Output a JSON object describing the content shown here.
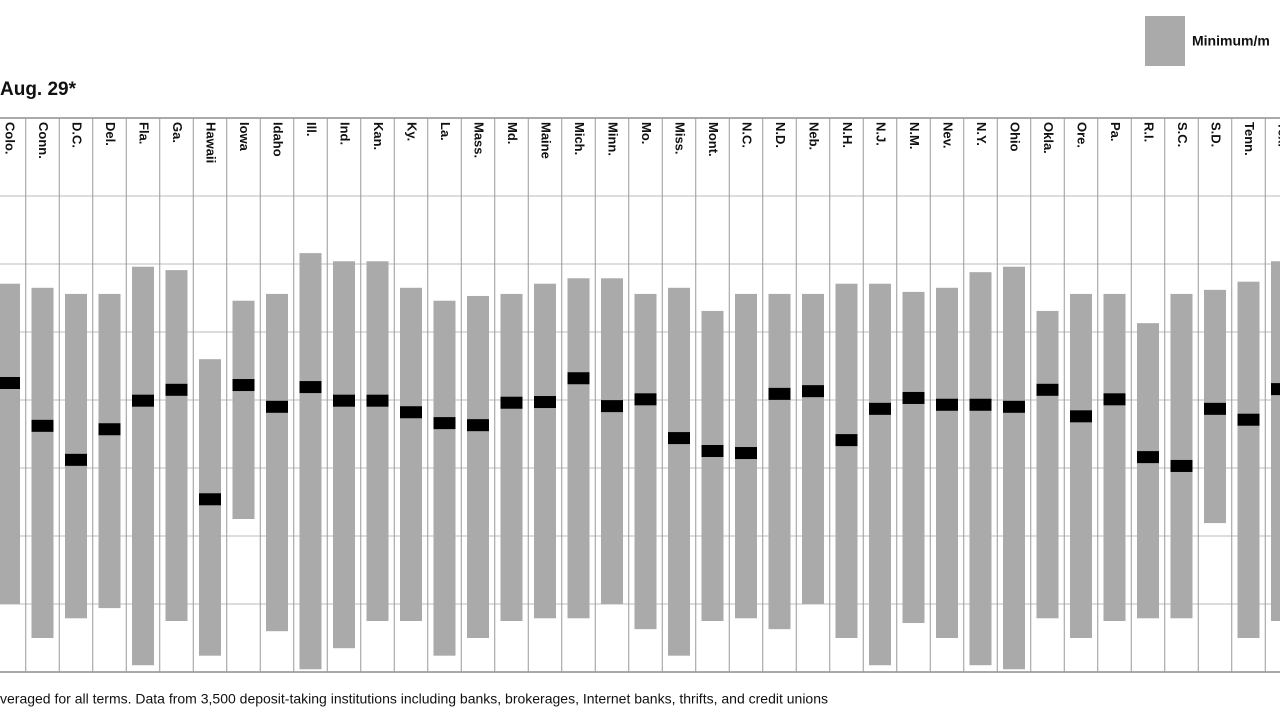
{
  "chart_data": {
    "type": "range",
    "title": "Aug. 29*",
    "legend_label": "Minimum/m",
    "footnote": "veraged for all terms. Data from 3,500 deposit-taking institutions including banks, brokerages, Internet banks, thrifts, and credit unions",
    "range_color": "#aaaaaa",
    "avg_color": "#000000",
    "categories": [
      "Colo.",
      "Conn.",
      "D.C.",
      "Del.",
      "Fla.",
      "Ga.",
      "Hawaii",
      "Iowa",
      "Idaho",
      "Ill.",
      "Ind.",
      "Kan.",
      "Ky.",
      "La.",
      "Mass.",
      "Md.",
      "Maine",
      "Mich.",
      "Minn.",
      "Mo.",
      "Miss.",
      "Mont.",
      "N.C.",
      "N.D.",
      "Neb.",
      "N.H.",
      "N.J.",
      "N.M.",
      "Nev.",
      "N.Y.",
      "Ohio",
      "Okla.",
      "Ore.",
      "Pa.",
      "R.I.",
      "S.C.",
      "S.D.",
      "Tenn.",
      "Tex."
    ],
    "max_values": [
      5.71,
      5.65,
      5.56,
      5.56,
      5.96,
      5.91,
      4.6,
      5.46,
      5.56,
      6.16,
      6.04,
      6.04,
      5.65,
      5.46,
      5.53,
      5.56,
      5.71,
      5.79,
      5.79,
      5.56,
      5.65,
      5.31,
      5.56,
      5.56,
      5.56,
      5.71,
      5.71,
      5.59,
      5.65,
      5.88,
      5.96,
      5.31,
      5.56,
      5.56,
      5.13,
      5.56,
      5.62,
      5.74,
      6.04
    ],
    "min_values": [
      1.0,
      0.5,
      0.79,
      0.94,
      0.1,
      0.75,
      0.24,
      2.25,
      0.6,
      0.04,
      0.35,
      0.75,
      0.75,
      0.24,
      0.5,
      0.75,
      0.79,
      0.79,
      1.0,
      0.63,
      0.24,
      0.75,
      0.79,
      0.63,
      1.0,
      0.5,
      0.1,
      0.72,
      0.5,
      0.1,
      0.04,
      0.79,
      0.5,
      0.75,
      0.79,
      0.79,
      2.19,
      0.5,
      0.75
    ],
    "avg_values": [
      4.25,
      3.62,
      3.12,
      3.57,
      3.99,
      4.15,
      2.54,
      4.22,
      3.9,
      4.19,
      3.99,
      3.99,
      3.82,
      3.66,
      3.63,
      3.96,
      3.97,
      4.32,
      3.91,
      4.01,
      3.44,
      3.25,
      3.22,
      4.09,
      4.13,
      3.41,
      3.87,
      4.03,
      3.93,
      3.93,
      3.9,
      4.15,
      3.76,
      4.01,
      3.16,
      3.03,
      3.87,
      3.71,
      4.16
    ],
    "ylim": [
      0,
      7
    ],
    "yticks": [
      0,
      1,
      2,
      3,
      4,
      5,
      6,
      7
    ],
    "grid": true
  }
}
